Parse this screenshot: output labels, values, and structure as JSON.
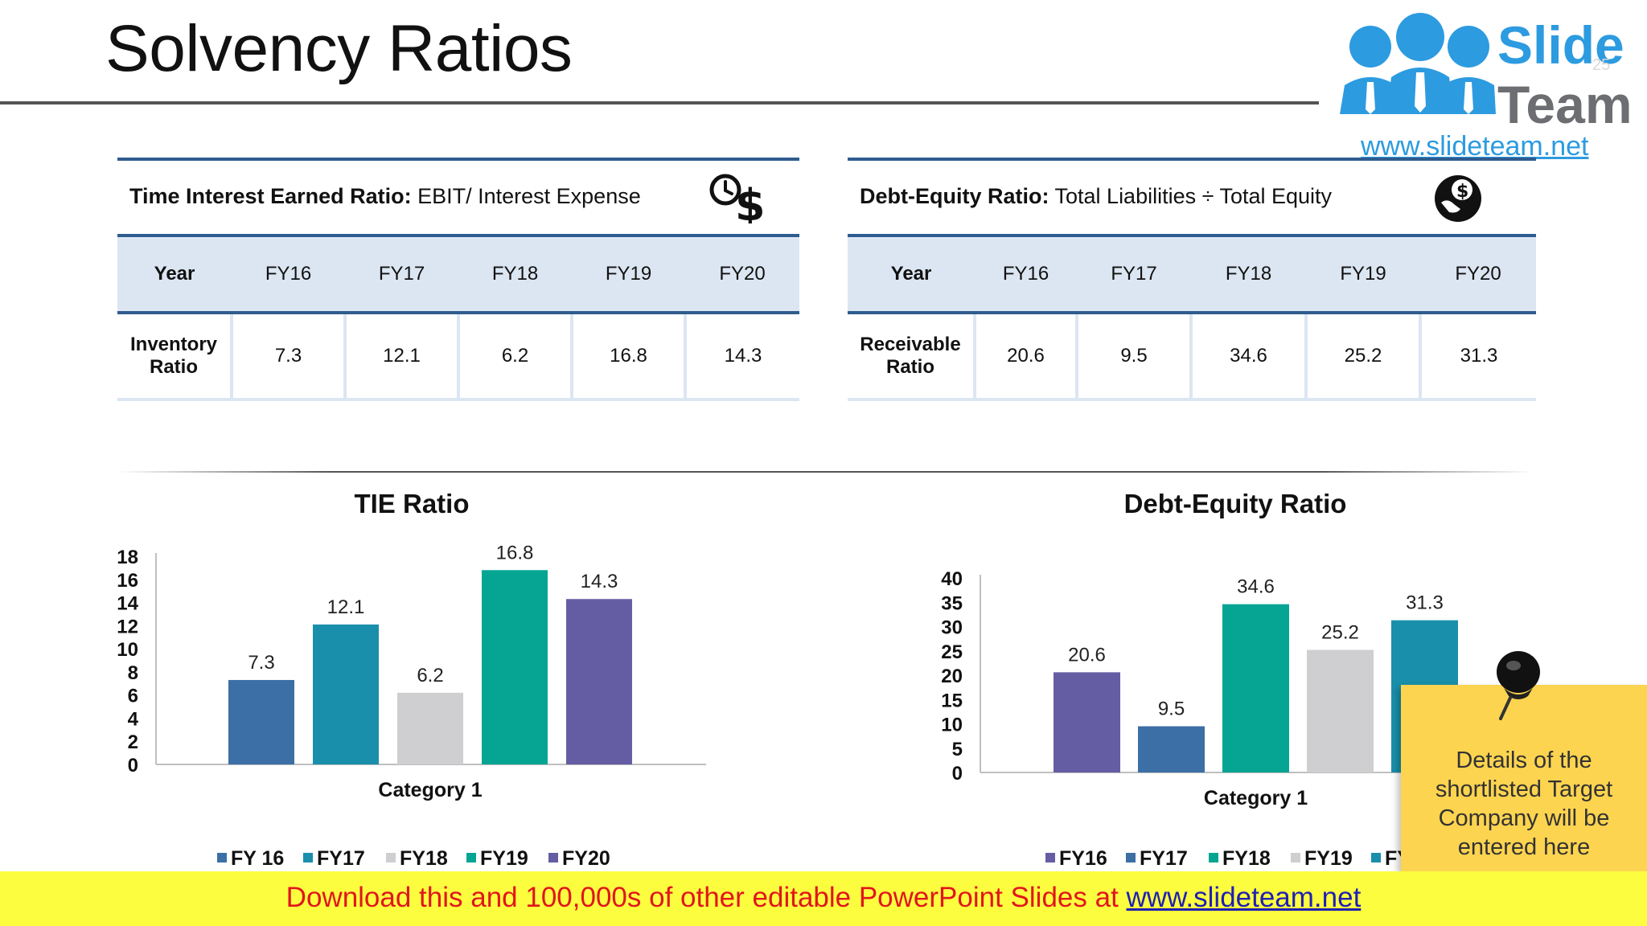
{
  "slide": {
    "title": "Solvency Ratios",
    "slide_number": "25"
  },
  "logo": {
    "word_top": "Slide",
    "word_bottom": "Team",
    "url": "www.slideteam.net"
  },
  "tables": [
    {
      "title_bold": "Time Interest Earned Ratio:",
      "title_rest": " EBIT/ Interest Expense",
      "icon": "clock-dollar-icon",
      "header": [
        "Year",
        "FY16",
        "FY17",
        "FY18",
        "FY19",
        "FY20"
      ],
      "row_label": [
        "Inventory",
        "Ratio"
      ],
      "row_values": [
        "7.3",
        "12.1",
        "6.2",
        "16.8",
        "14.3"
      ]
    },
    {
      "title_bold": "Debt-Equity Ratio:",
      "title_rest": " Total Liabilities ÷ Total Equity",
      "icon": "hand-dollar-icon",
      "header": [
        "Year",
        "FY16",
        "FY17",
        "FY18",
        "FY19",
        "FY20"
      ],
      "row_label": [
        "Receivable",
        "Ratio"
      ],
      "row_values": [
        "20.6",
        "9.5",
        "34.6",
        "25.2",
        "31.3"
      ]
    }
  ],
  "chart_data": [
    {
      "type": "bar",
      "title": "TIE Ratio",
      "categories": [
        "Category 1"
      ],
      "xlabel": "Category 1",
      "ylim": [
        0,
        18
      ],
      "yticks": [
        0,
        2,
        4,
        6,
        8,
        10,
        12,
        14,
        16,
        18
      ],
      "legend_position": "bottom",
      "series": [
        {
          "name": "FY 16",
          "values": [
            7.3
          ],
          "color": "#3b6fa5"
        },
        {
          "name": "FY17",
          "values": [
            12.1
          ],
          "color": "#1a8fab"
        },
        {
          "name": "FY18",
          "values": [
            6.2
          ],
          "color": "#cfcfd1"
        },
        {
          "name": "FY19",
          "values": [
            16.8
          ],
          "color": "#06a593"
        },
        {
          "name": "FY20",
          "values": [
            14.3
          ],
          "color": "#655da4"
        }
      ]
    },
    {
      "type": "bar",
      "title": "Debt-Equity Ratio",
      "categories": [
        "Category 1"
      ],
      "xlabel": "Category 1",
      "ylim": [
        0,
        40
      ],
      "yticks": [
        0,
        5,
        10,
        15,
        20,
        25,
        30,
        35,
        40
      ],
      "legend_position": "bottom",
      "series": [
        {
          "name": "FY16",
          "values": [
            20.6
          ],
          "color": "#655da4"
        },
        {
          "name": "FY17",
          "values": [
            9.5
          ],
          "color": "#3b6fa5"
        },
        {
          "name": "FY18",
          "values": [
            34.6
          ],
          "color": "#06a593"
        },
        {
          "name": "FY19",
          "values": [
            25.2
          ],
          "color": "#cfcfd1"
        },
        {
          "name": "FY20",
          "values": [
            31.3
          ],
          "color": "#1a8fab"
        }
      ]
    }
  ],
  "sticky_note": {
    "text": "Details of the\nshortlisted Target\nCompany will be\nentered here"
  },
  "banner": {
    "text": "Download this and 100,000s of other editable PowerPoint Slides at ",
    "link": "www.slideteam.net"
  }
}
